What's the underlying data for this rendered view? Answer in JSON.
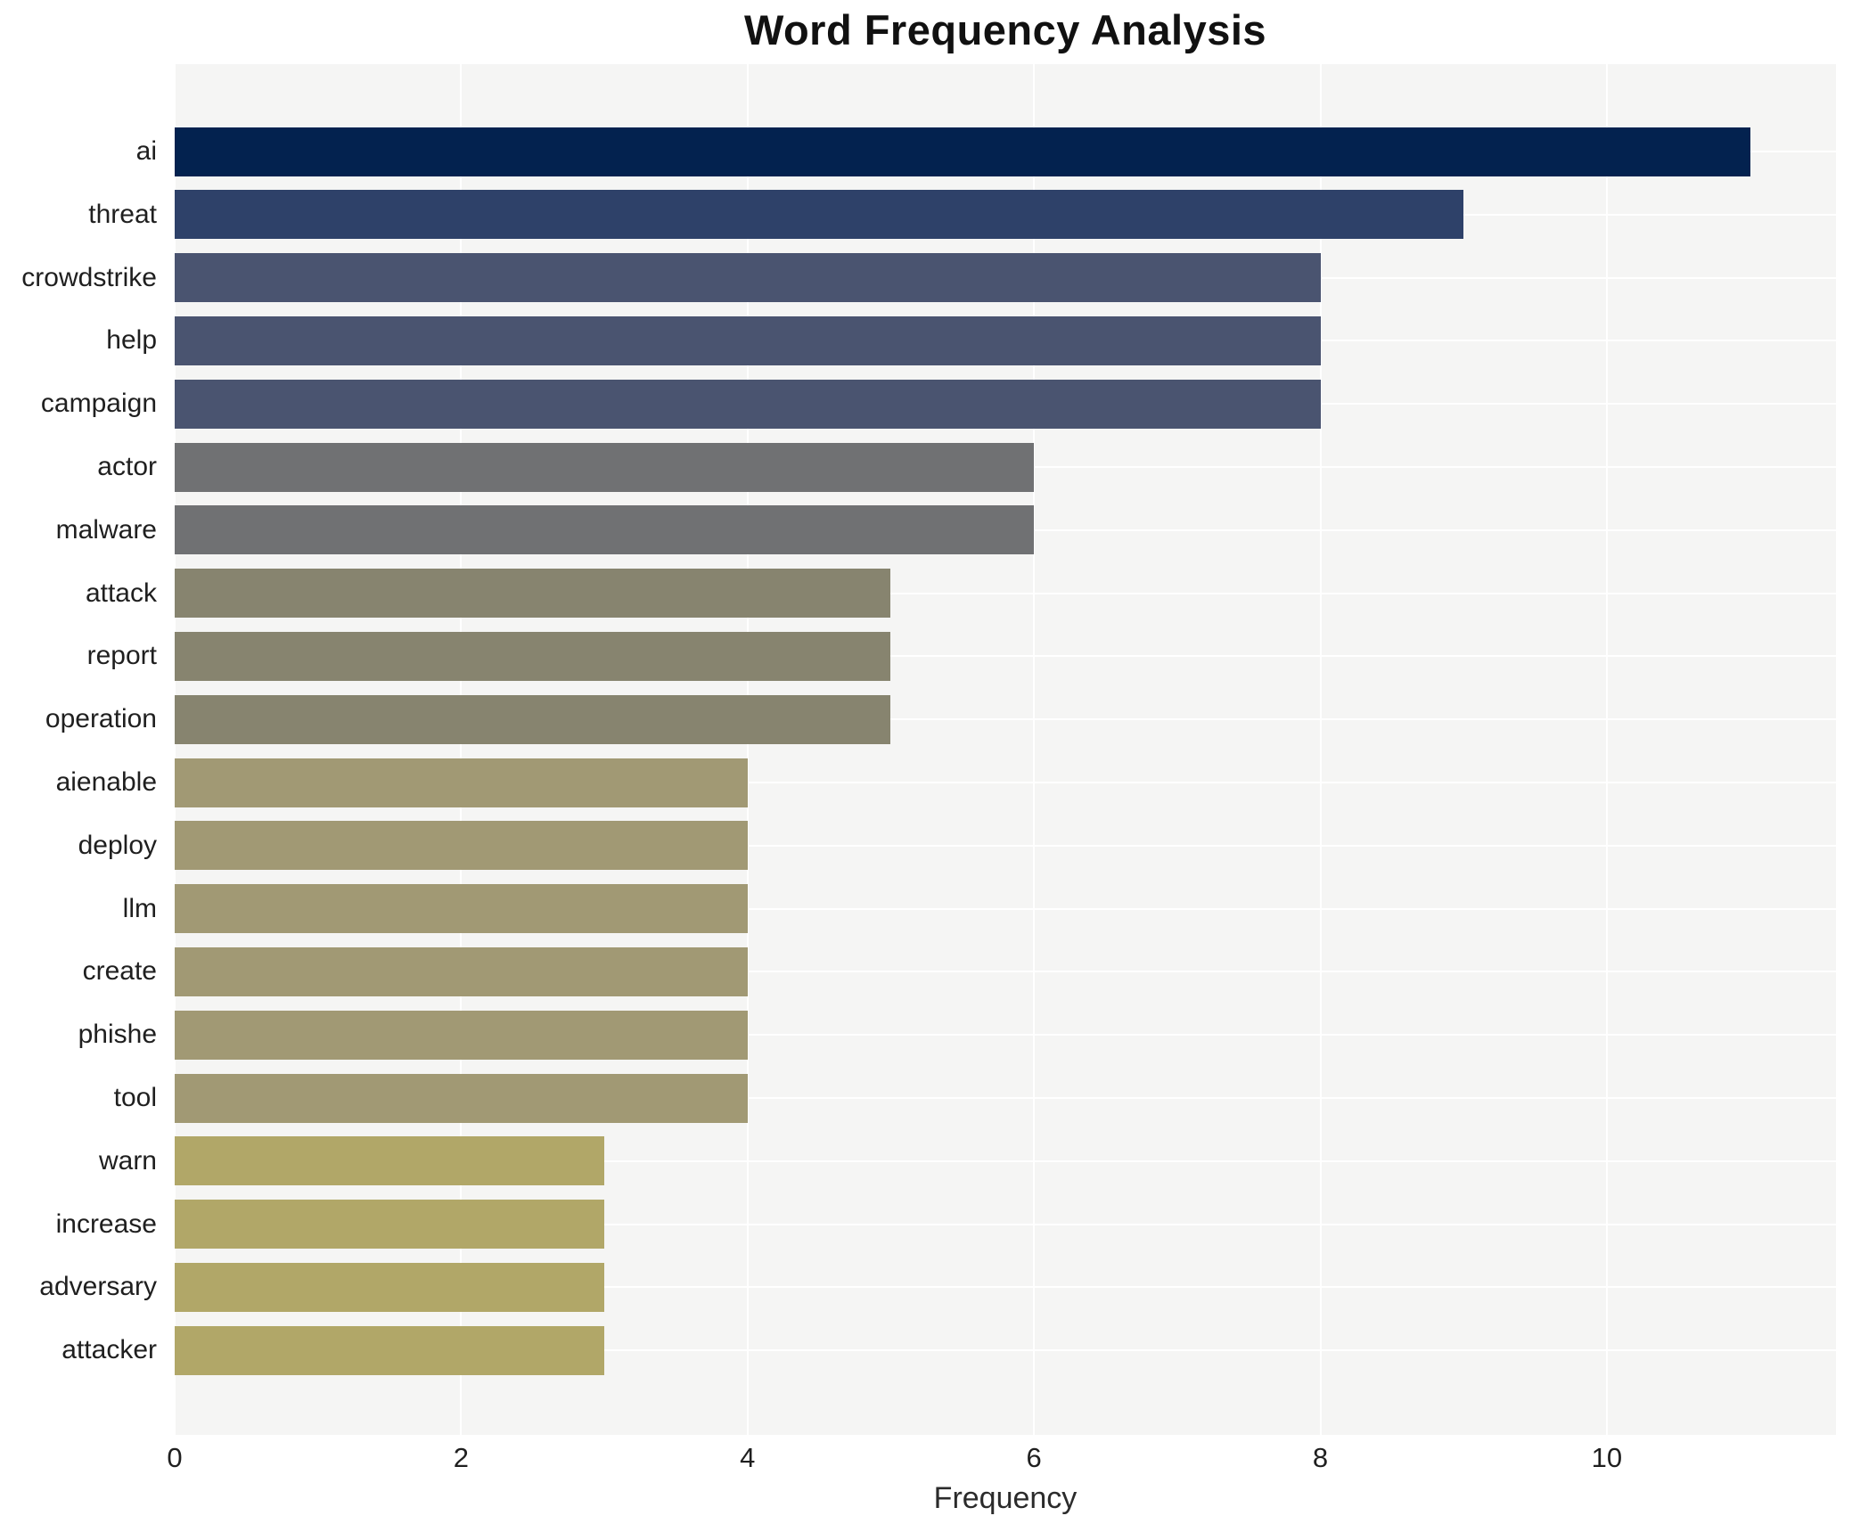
{
  "title": "Word Frequency Analysis",
  "chart_data": {
    "type": "bar",
    "orientation": "horizontal",
    "title": "Word Frequency Analysis",
    "xlabel": "Frequency",
    "ylabel": "",
    "categories": [
      "ai",
      "threat",
      "crowdstrike",
      "help",
      "campaign",
      "actor",
      "malware",
      "attack",
      "report",
      "operation",
      "aienable",
      "deploy",
      "llm",
      "create",
      "phishe",
      "tool",
      "warn",
      "increase",
      "adversary",
      "attacker"
    ],
    "values": [
      11,
      9,
      8,
      8,
      8,
      6,
      6,
      5,
      5,
      5,
      4,
      4,
      4,
      4,
      4,
      4,
      3,
      3,
      3,
      3
    ],
    "bar_colors": [
      "#03224f",
      "#2e4169",
      "#4a5470",
      "#4a5470",
      "#4a5470",
      "#707173",
      "#707173",
      "#87846f",
      "#87846f",
      "#87846f",
      "#a19974",
      "#a19974",
      "#a19974",
      "#a19974",
      "#a19974",
      "#a19974",
      "#b1a768",
      "#b1a768",
      "#b1a768",
      "#b1a768"
    ],
    "xticks": [
      0,
      2,
      4,
      6,
      8,
      10
    ],
    "xlim": [
      0,
      11.6
    ],
    "grid": true,
    "legend": "none",
    "plot_bg": "#f5f5f4",
    "grid_color": "#ffffff",
    "figure_bg": "#ffffff"
  }
}
